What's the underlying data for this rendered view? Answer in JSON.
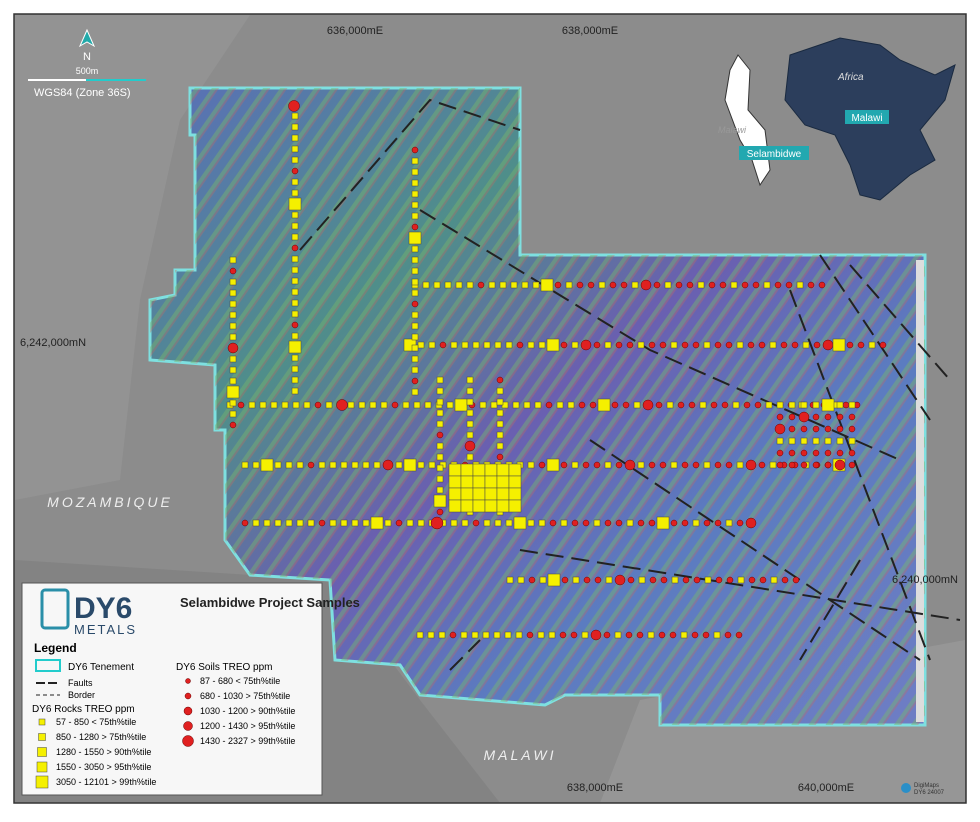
{
  "grid_labels": {
    "top": [
      "636,000mE",
      "638,000mE"
    ],
    "bottom": [
      "638,000mE",
      "640,000mE"
    ],
    "left": "6,242,000mN",
    "right": "6,240,000mN"
  },
  "scale": {
    "north": "N",
    "distance": "500m",
    "datum": "WGS84 (Zone 36S)"
  },
  "countries": [
    "MOZAMBIQUE",
    "MALAWI"
  ],
  "inset": {
    "continent": "Africa",
    "country_faint": "Malawi",
    "country": "Malawi",
    "project": "Selambidwe"
  },
  "legend": {
    "logo": "DY6",
    "logo_sub": "METALS",
    "title": "Selambidwe Project Samples",
    "heading": "Legend",
    "tenement": "DY6 Tenement",
    "faults": "Faults",
    "border": "Border",
    "rocks_title": "DY6 Rocks TREO ppm",
    "rocks": [
      "57 - 850 < 75th%tile",
      "850 - 1280 > 75th%tile",
      "1280 - 1550 > 90th%tile",
      "1550 - 3050 > 95th%tile",
      "3050 - 12101 > 99th%tile"
    ],
    "soils_title": "DY6 Soils TREO ppm",
    "soils": [
      "87 - 680 < 75th%tile",
      "680 - 1030 > 75th%tile",
      "1030 - 1200 > 90th%tile",
      "1200 - 1430 > 95th%tile",
      "1430 - 2327 > 99th%tile"
    ]
  },
  "credit": [
    "DigiMaps",
    "DY6 24007"
  ]
}
